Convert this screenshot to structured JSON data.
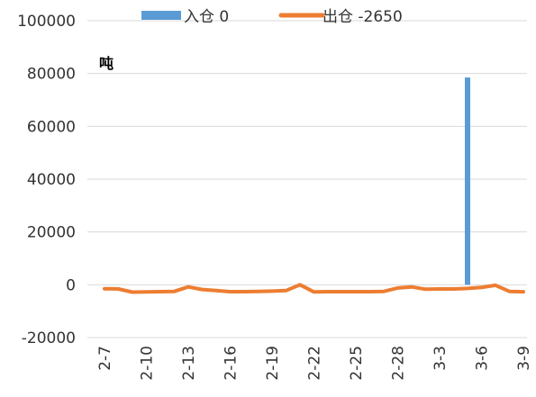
{
  "chart_data": {
    "type": "bar+line",
    "unit_label": "吨",
    "y_ticks": [
      100000,
      80000,
      60000,
      40000,
      20000,
      0,
      -20000
    ],
    "ylim": [
      -20000,
      100000
    ],
    "grid": true,
    "legend_position": "top",
    "x_tick_labels": [
      "2-7",
      "2-10",
      "2-13",
      "2-16",
      "2-19",
      "2-22",
      "2-25",
      "2-28",
      "3-3",
      "3-6",
      "3-9"
    ],
    "categories": [
      "2-7",
      "2-8",
      "2-9",
      "2-10",
      "2-11",
      "2-12",
      "2-13",
      "2-14",
      "2-15",
      "2-16",
      "2-17",
      "2-18",
      "2-19",
      "2-20",
      "2-21",
      "2-22",
      "2-23",
      "2-24",
      "2-25",
      "2-26",
      "2-27",
      "2-28",
      "3-1",
      "3-2",
      "3-3",
      "3-4",
      "3-5",
      "3-6",
      "3-7",
      "3-8",
      "3-9"
    ],
    "series": [
      {
        "name": "入仓",
        "legend_label": "入仓 0",
        "type": "bar",
        "color": "#5B9BD5",
        "values": [
          0,
          0,
          0,
          0,
          0,
          0,
          0,
          0,
          0,
          0,
          0,
          0,
          0,
          0,
          0,
          0,
          0,
          0,
          0,
          0,
          0,
          0,
          0,
          0,
          0,
          0,
          78500,
          0,
          0,
          0,
          0
        ]
      },
      {
        "name": "出仓",
        "legend_label": "出仓 -2650",
        "type": "line",
        "color": "#ED7D31",
        "values": [
          -1500,
          -1600,
          -2800,
          -2700,
          -2600,
          -2500,
          -800,
          -1800,
          -2200,
          -2600,
          -2600,
          -2500,
          -2400,
          -2200,
          0,
          -2700,
          -2600,
          -2600,
          -2600,
          -2600,
          -2500,
          -1200,
          -800,
          -1700,
          -1600,
          -1600,
          -1400,
          -1000,
          -200,
          -2500,
          -2650
        ]
      }
    ]
  }
}
